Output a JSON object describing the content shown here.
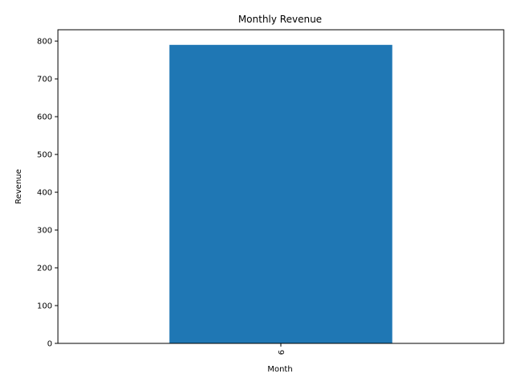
{
  "chart_data": {
    "type": "bar",
    "title": "Monthly Revenue",
    "xlabel": "Month",
    "ylabel": "Revenue",
    "categories": [
      "6"
    ],
    "values": [
      790
    ],
    "ylim": [
      0,
      830
    ],
    "yticks": [
      0,
      100,
      200,
      300,
      400,
      500,
      600,
      700,
      800
    ],
    "grid": false,
    "bar_color": "#1f77b4",
    "xtick_rotation": "vertical"
  }
}
